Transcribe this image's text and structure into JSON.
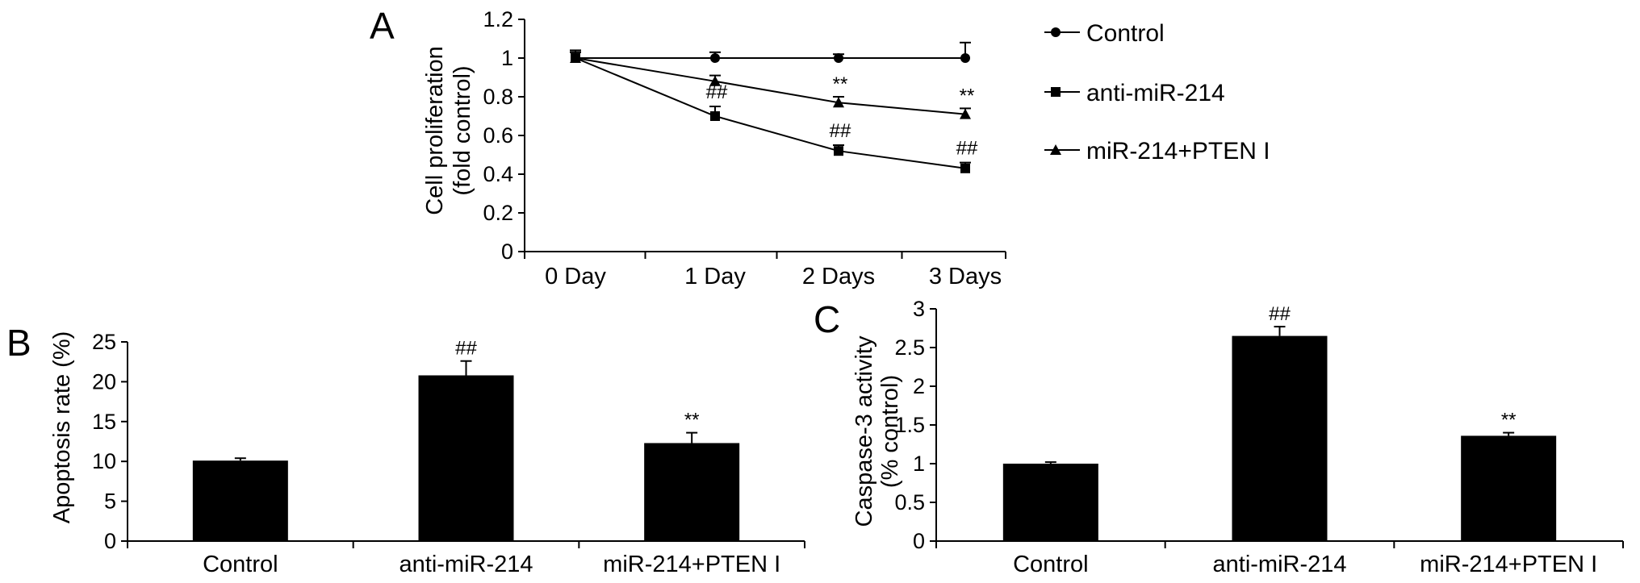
{
  "chart_data": [
    {
      "panel": "A",
      "type": "line",
      "categories": [
        "0 Day",
        "1 Day",
        "2 Days",
        "3 Days"
      ],
      "ylabel_line1": "Cell proliferation",
      "ylabel_line2": "(fold control)",
      "ylim": [
        0,
        1.2
      ],
      "yticks": [
        "0",
        "0.2",
        "0.4",
        "0.6",
        "0.8",
        "1",
        "1.2"
      ],
      "series": [
        {
          "name": "Control",
          "marker": "circle",
          "values": [
            1.0,
            1.0,
            1.0,
            1.0
          ],
          "errors": [
            0.04,
            0.03,
            0.02,
            0.08
          ],
          "annotations": [
            "",
            "",
            "",
            ""
          ]
        },
        {
          "name": "anti-miR-214",
          "marker": "square",
          "values": [
            1.0,
            0.7,
            0.52,
            0.43
          ],
          "errors": [
            0.03,
            0.05,
            0.03,
            0.03
          ],
          "annotations": [
            "",
            "##",
            "##",
            "##"
          ]
        },
        {
          "name": "miR-214+PTEN I",
          "marker": "triangle",
          "values": [
            1.0,
            0.88,
            0.77,
            0.71
          ],
          "errors": [
            0.03,
            0.03,
            0.03,
            0.03
          ],
          "annotations": [
            "",
            "",
            "**",
            "**"
          ]
        }
      ],
      "legend_position": "right"
    },
    {
      "panel": "B",
      "type": "bar",
      "categories": [
        "Control",
        "anti-miR-214",
        "miR-214+PTEN I"
      ],
      "values": [
        10.1,
        20.8,
        12.3
      ],
      "errors": [
        0.3,
        1.8,
        1.3
      ],
      "annotations": [
        "",
        "##",
        "**"
      ],
      "ylabel": "Apoptosis rate (%)",
      "ylim": [
        0,
        25
      ],
      "yticks": [
        "0",
        "5",
        "10",
        "15",
        "20",
        "25"
      ]
    },
    {
      "panel": "C",
      "type": "bar",
      "categories": [
        "Control",
        "anti-miR-214",
        "miR-214+PTEN I"
      ],
      "values": [
        1.0,
        2.65,
        1.36
      ],
      "errors": [
        0.02,
        0.12,
        0.04
      ],
      "annotations": [
        "",
        "##",
        "**"
      ],
      "ylabel_line1": "Caspase-3 activity",
      "ylabel_line2": "(% control)",
      "ylim": [
        0,
        3
      ],
      "yticks": [
        "0",
        "0.5",
        "1",
        "1.5",
        "2",
        "2.5",
        "3"
      ]
    }
  ]
}
